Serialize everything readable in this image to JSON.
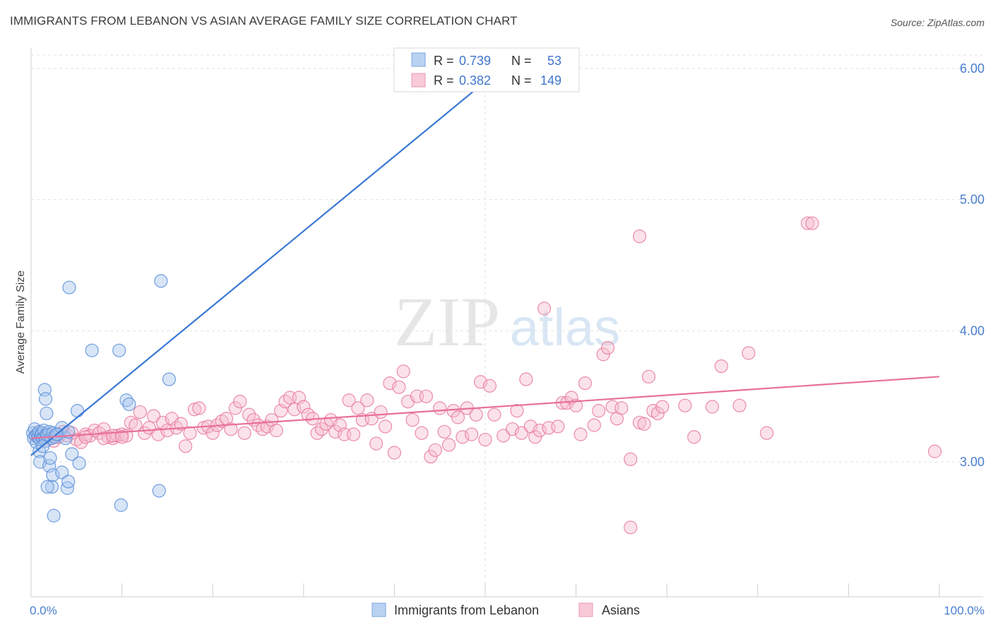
{
  "header": {
    "title": "IMMIGRANTS FROM LEBANON VS ASIAN AVERAGE FAMILY SIZE CORRELATION CHART",
    "source": "Source: ZipAtlas.com"
  },
  "watermark": {
    "zip": "ZIP",
    "atlas": "atlas"
  },
  "stats": [
    {
      "r_label": "R = ",
      "r_value": "0.739",
      "n_label": "N = ",
      "n_value": "53",
      "color": "#5b8fd9"
    },
    {
      "r_label": "R = ",
      "r_value": "0.382",
      "n_label": "N = ",
      "n_value": "149",
      "color": "#e8799b"
    }
  ],
  "chart_data": {
    "type": "scatter",
    "title": "IMMIGRANTS FROM LEBANON VS ASIAN AVERAGE FAMILY SIZE CORRELATION CHART",
    "xlabel": "",
    "ylabel": "Average Family Size",
    "x_tick_labels": [
      "0.0%",
      "100.0%"
    ],
    "y_ticks": [
      3.0,
      4.0,
      5.0,
      6.0
    ],
    "y_tick_labels": [
      "3.00",
      "4.00",
      "5.00",
      "6.00"
    ],
    "xlim": [
      0,
      100
    ],
    "ylim": [
      2.0,
      6.1
    ],
    "grid": true,
    "legend_position": "bottom-center",
    "series": [
      {
        "name": "Immigrants from Lebanon",
        "color": "#5b8fd9",
        "fill": "#a9c6ee",
        "trend": {
          "x0": 0,
          "y0": 3.05,
          "x1": 50,
          "y1": 5.9
        },
        "points": [
          [
            0.2,
            3.22
          ],
          [
            0.3,
            3.18
          ],
          [
            0.4,
            3.25
          ],
          [
            0.5,
            3.2
          ],
          [
            0.6,
            3.15
          ],
          [
            0.7,
            3.21
          ],
          [
            0.8,
            3.19
          ],
          [
            0.9,
            3.23
          ],
          [
            1.0,
            3.17
          ],
          [
            1.1,
            3.2
          ],
          [
            1.2,
            3.22
          ],
          [
            1.3,
            3.18
          ],
          [
            1.4,
            3.24
          ],
          [
            1.5,
            3.19
          ],
          [
            1.6,
            3.16
          ],
          [
            1.7,
            3.21
          ],
          [
            1.8,
            3.2
          ],
          [
            2.0,
            3.23
          ],
          [
            2.2,
            3.18
          ],
          [
            2.4,
            3.22
          ],
          [
            2.6,
            3.19
          ],
          [
            3.0,
            3.21
          ],
          [
            3.4,
            3.26
          ],
          [
            3.8,
            3.18
          ],
          [
            4.1,
            3.23
          ],
          [
            0.9,
            3.08
          ],
          [
            1.3,
            3.12
          ],
          [
            1.0,
            3.0
          ],
          [
            1.5,
            3.55
          ],
          [
            1.6,
            3.48
          ],
          [
            1.7,
            3.37
          ],
          [
            2.0,
            2.97
          ],
          [
            2.1,
            3.03
          ],
          [
            2.3,
            2.81
          ],
          [
            2.4,
            2.9
          ],
          [
            1.8,
            2.81
          ],
          [
            3.4,
            2.92
          ],
          [
            4.0,
            2.8
          ],
          [
            4.1,
            2.85
          ],
          [
            2.5,
            2.59
          ],
          [
            4.5,
            3.06
          ],
          [
            5.3,
            2.99
          ],
          [
            5.1,
            3.39
          ],
          [
            4.2,
            4.33
          ],
          [
            6.7,
            3.85
          ],
          [
            9.7,
            3.85
          ],
          [
            10.5,
            3.47
          ],
          [
            10.8,
            3.44
          ],
          [
            9.9,
            2.67
          ],
          [
            14.3,
            4.38
          ],
          [
            15.2,
            3.63
          ],
          [
            14.1,
            2.78
          ],
          [
            2.8,
            3.21
          ]
        ]
      },
      {
        "name": "Asians",
        "color": "#e8799b",
        "fill": "#f6bfd0",
        "trend": {
          "x0": 0,
          "y0": 3.18,
          "x1": 100,
          "y1": 3.65
        },
        "points": [
          [
            0.5,
            3.2
          ],
          [
            1.0,
            3.22
          ],
          [
            1.5,
            3.18
          ],
          [
            2.0,
            3.21
          ],
          [
            2.5,
            3.16
          ],
          [
            3.0,
            3.19
          ],
          [
            3.5,
            3.23
          ],
          [
            4.0,
            3.2
          ],
          [
            4.5,
            3.22
          ],
          [
            5.0,
            3.17
          ],
          [
            5.5,
            3.15
          ],
          [
            6.0,
            3.21
          ],
          [
            6.5,
            3.2
          ],
          [
            7.0,
            3.24
          ],
          [
            7.5,
            3.22
          ],
          [
            8.0,
            3.25
          ],
          [
            8.5,
            3.19
          ],
          [
            9.0,
            3.18
          ],
          [
            9.5,
            3.2
          ],
          [
            10.0,
            3.21
          ],
          [
            10.5,
            3.2
          ],
          [
            11.0,
            3.3
          ],
          [
            11.5,
            3.28
          ],
          [
            12.0,
            3.38
          ],
          [
            12.5,
            3.22
          ],
          [
            13.0,
            3.26
          ],
          [
            13.5,
            3.35
          ],
          [
            14.0,
            3.21
          ],
          [
            14.5,
            3.3
          ],
          [
            15.0,
            3.24
          ],
          [
            15.5,
            3.33
          ],
          [
            16.0,
            3.26
          ],
          [
            16.5,
            3.29
          ],
          [
            17.0,
            3.12
          ],
          [
            17.5,
            3.22
          ],
          [
            18.0,
            3.4
          ],
          [
            18.5,
            3.41
          ],
          [
            19.0,
            3.26
          ],
          [
            19.5,
            3.27
          ],
          [
            20.0,
            3.22
          ],
          [
            20.5,
            3.28
          ],
          [
            21.0,
            3.31
          ],
          [
            21.5,
            3.33
          ],
          [
            22.0,
            3.25
          ],
          [
            22.5,
            3.41
          ],
          [
            23.0,
            3.46
          ],
          [
            23.5,
            3.22
          ],
          [
            24.0,
            3.36
          ],
          [
            24.5,
            3.32
          ],
          [
            25.0,
            3.28
          ],
          [
            25.5,
            3.25
          ],
          [
            26.0,
            3.27
          ],
          [
            26.5,
            3.32
          ],
          [
            27.0,
            3.24
          ],
          [
            27.5,
            3.39
          ],
          [
            28.0,
            3.46
          ],
          [
            28.5,
            3.49
          ],
          [
            29.0,
            3.4
          ],
          [
            29.5,
            3.49
          ],
          [
            30.0,
            3.42
          ],
          [
            30.5,
            3.36
          ],
          [
            31.0,
            3.33
          ],
          [
            31.5,
            3.22
          ],
          [
            32.0,
            3.25
          ],
          [
            32.5,
            3.29
          ],
          [
            33.0,
            3.32
          ],
          [
            33.5,
            3.23
          ],
          [
            34.0,
            3.28
          ],
          [
            34.5,
            3.21
          ],
          [
            35.0,
            3.47
          ],
          [
            35.5,
            3.21
          ],
          [
            36.0,
            3.41
          ],
          [
            36.5,
            3.32
          ],
          [
            37.0,
            3.47
          ],
          [
            37.5,
            3.33
          ],
          [
            38.0,
            3.14
          ],
          [
            38.5,
            3.38
          ],
          [
            39.0,
            3.27
          ],
          [
            39.5,
            3.6
          ],
          [
            40.0,
            3.07
          ],
          [
            40.5,
            3.57
          ],
          [
            41.0,
            3.69
          ],
          [
            41.5,
            3.46
          ],
          [
            42.0,
            3.32
          ],
          [
            42.5,
            3.5
          ],
          [
            43.0,
            3.22
          ],
          [
            43.5,
            3.5
          ],
          [
            44.0,
            3.04
          ],
          [
            44.5,
            3.09
          ],
          [
            45.0,
            3.41
          ],
          [
            45.5,
            3.23
          ],
          [
            46.0,
            3.13
          ],
          [
            46.5,
            3.39
          ],
          [
            47.0,
            3.34
          ],
          [
            47.5,
            3.19
          ],
          [
            48.0,
            3.41
          ],
          [
            48.5,
            3.21
          ],
          [
            49.0,
            3.36
          ],
          [
            49.5,
            3.61
          ],
          [
            50.0,
            3.17
          ],
          [
            50.5,
            3.58
          ],
          [
            51.0,
            3.36
          ],
          [
            52.0,
            3.2
          ],
          [
            53.0,
            3.25
          ],
          [
            53.5,
            3.39
          ],
          [
            54.0,
            3.22
          ],
          [
            54.5,
            3.63
          ],
          [
            55.0,
            3.27
          ],
          [
            55.5,
            3.19
          ],
          [
            56.0,
            3.24
          ],
          [
            57.0,
            3.26
          ],
          [
            58.0,
            3.27
          ],
          [
            58.5,
            3.45
          ],
          [
            59.0,
            3.45
          ],
          [
            59.5,
            3.49
          ],
          [
            60.0,
            3.43
          ],
          [
            60.5,
            3.21
          ],
          [
            61.0,
            3.6
          ],
          [
            62.0,
            3.28
          ],
          [
            62.5,
            3.39
          ],
          [
            63.0,
            3.82
          ],
          [
            63.5,
            3.87
          ],
          [
            64.0,
            3.42
          ],
          [
            64.5,
            3.33
          ],
          [
            65.0,
            3.41
          ],
          [
            66.0,
            3.02
          ],
          [
            67.0,
            3.3
          ],
          [
            67.5,
            3.29
          ],
          [
            68.0,
            3.65
          ],
          [
            68.5,
            3.39
          ],
          [
            69.0,
            3.37
          ],
          [
            69.5,
            3.42
          ],
          [
            72.0,
            3.43
          ],
          [
            73.0,
            3.19
          ],
          [
            75.0,
            3.42
          ],
          [
            76.0,
            3.73
          ],
          [
            78.0,
            3.43
          ],
          [
            79.0,
            3.83
          ],
          [
            81.0,
            3.22
          ],
          [
            56.5,
            4.17
          ],
          [
            67.0,
            4.72
          ],
          [
            85.5,
            4.82
          ],
          [
            86.0,
            4.82
          ],
          [
            99.5,
            3.08
          ],
          [
            66.0,
            2.5
          ],
          [
            6.0,
            3.19
          ],
          [
            8.0,
            3.18
          ],
          [
            9.0,
            3.2
          ],
          [
            10.0,
            3.19
          ]
        ]
      }
    ]
  }
}
